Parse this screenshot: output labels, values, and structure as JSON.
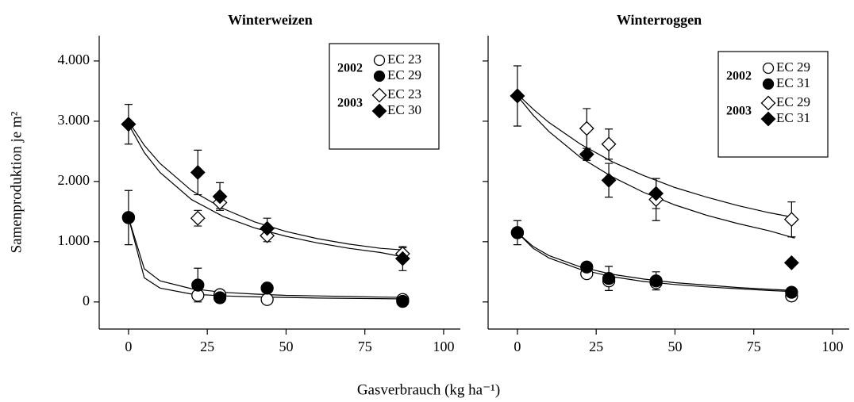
{
  "xlabel": "Gasverbrauch (kg ha⁻¹)",
  "ylabel": "Samenproduktion je m²",
  "chart_data": [
    {
      "type": "scatter",
      "title": "Winterweizen",
      "x": [
        0,
        22,
        29,
        44,
        87
      ],
      "xlim": [
        -9.3,
        105.3
      ],
      "xticks": [
        0,
        25,
        50,
        75,
        100
      ],
      "ylim": [
        -450,
        4420
      ],
      "yticks": [
        0,
        {
          "value": 1000,
          "label": "1.000"
        },
        {
          "value": 2000,
          "label": "2.000"
        },
        {
          "value": 3000,
          "label": "3.000"
        },
        {
          "value": 4000,
          "label": "4.000"
        }
      ],
      "legend": "upper right",
      "groups": [
        {
          "name": "2002",
          "series": [
            {
              "name": "EC 23",
              "marker": "circle",
              "filled": false,
              "color": "#000000",
              "values": [
                1400,
                110,
                120,
                40,
                40
              ],
              "errors": [
                null,
                null,
                null,
                null,
                null
              ]
            },
            {
              "name": "EC 29",
              "marker": "circle",
              "filled": true,
              "color": "#000000",
              "values": [
                1400,
                280,
                70,
                230,
                10
              ],
              "errors": [
                450,
                280,
                null,
                null,
                null
              ]
            }
          ]
        },
        {
          "name": "2003",
          "series": [
            {
              "name": "EC 23",
              "marker": "diamond",
              "filled": false,
              "color": "#000000",
              "values": [
                2950,
                1390,
                1650,
                1100,
                800
              ],
              "errors": [
                null,
                130,
                100,
                100,
                100
              ]
            },
            {
              "name": "EC 30",
              "marker": "diamond",
              "filled": true,
              "color": "#000000",
              "values": [
                2950,
                2150,
                1750,
                1220,
                720
              ],
              "errors": [
                330,
                370,
                230,
                170,
                200
              ]
            }
          ]
        }
      ],
      "fit_x": [
        0,
        5,
        10,
        20,
        30,
        40,
        50,
        60,
        70,
        80,
        88
      ],
      "fits": [
        {
          "values": [
            3000,
            2600,
            2300,
            1850,
            1550,
            1330,
            1170,
            1050,
            960,
            890,
            860
          ]
        },
        {
          "values": [
            2950,
            2480,
            2150,
            1700,
            1420,
            1230,
            1090,
            980,
            890,
            820,
            740
          ]
        },
        {
          "values": [
            1400,
            550,
            350,
            220,
            160,
            130,
            110,
            100,
            90,
            80,
            75
          ]
        },
        {
          "values": [
            1400,
            400,
            230,
            130,
            100,
            85,
            75,
            65,
            60,
            55,
            50
          ]
        }
      ]
    },
    {
      "type": "scatter",
      "title": "Winterroggen",
      "x": [
        0,
        22,
        29,
        44,
        87
      ],
      "xlim": [
        -9.3,
        105.3
      ],
      "xticks": [
        0,
        25,
        50,
        75,
        100
      ],
      "ylim": [
        -450,
        4420
      ],
      "yticks": [
        0,
        1000,
        2000,
        3000,
        4000
      ],
      "legend": "upper right",
      "groups": [
        {
          "name": "2002",
          "series": [
            {
              "name": "EC 29",
              "marker": "circle",
              "filled": false,
              "color": "#000000",
              "values": [
                1150,
                470,
                350,
                320,
                100
              ],
              "errors": [
                null,
                null,
                null,
                null,
                null
              ]
            },
            {
              "name": "EC 31",
              "marker": "circle",
              "filled": true,
              "color": "#000000",
              "values": [
                1150,
                580,
                390,
                350,
                160
              ],
              "errors": [
                200,
                50,
                200,
                150,
                null
              ]
            }
          ]
        },
        {
          "name": "2003",
          "series": [
            {
              "name": "EC 29",
              "marker": "diamond",
              "filled": false,
              "color": "#000000",
              "values": [
                3420,
                2880,
                2620,
                1700,
                1370
              ],
              "errors": [
                null,
                330,
                250,
                350,
                290
              ]
            },
            {
              "name": "EC 31",
              "marker": "diamond",
              "filled": true,
              "color": "#000000",
              "values": [
                3420,
                2450,
                2020,
                1800,
                650
              ],
              "errors": [
                500,
                100,
                280,
                250,
                50
              ]
            }
          ]
        }
      ],
      "fit_x": [
        0,
        5,
        10,
        20,
        30,
        40,
        50,
        60,
        70,
        80,
        88
      ],
      "fits": [
        {
          "values": [
            3450,
            3200,
            2980,
            2620,
            2330,
            2100,
            1900,
            1740,
            1600,
            1480,
            1400
          ]
        },
        {
          "values": [
            3420,
            3100,
            2830,
            2400,
            2080,
            1820,
            1610,
            1440,
            1300,
            1180,
            1060
          ]
        },
        {
          "values": [
            1150,
            920,
            770,
            580,
            460,
            380,
            320,
            280,
            240,
            210,
            190
          ]
        },
        {
          "values": [
            1150,
            890,
            730,
            540,
            420,
            340,
            290,
            250,
            220,
            190,
            170
          ]
        }
      ]
    }
  ]
}
